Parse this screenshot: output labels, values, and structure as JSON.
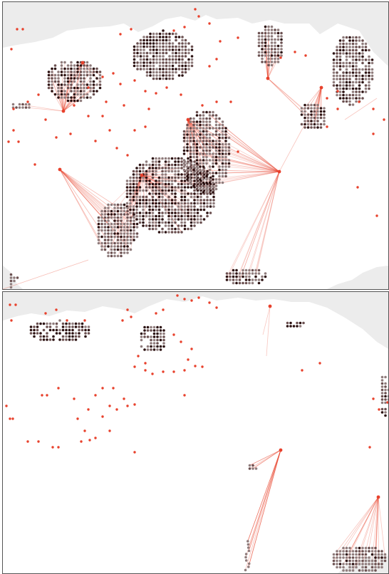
{
  "colors": {
    "background": "#ffffff",
    "land": "#ececec",
    "frame": "#555555",
    "link": "#e8412c",
    "hub": "#e8412c",
    "cell_dark": "#2a0f0f",
    "cell_mid": "#6b5050",
    "cell_light": "#8f7c7c"
  },
  "maps": [
    {
      "name": "top-panel",
      "hubs": [
        {
          "id": "hub-a",
          "links": 60
        },
        {
          "id": "hub-b",
          "links": 55
        },
        {
          "id": "hub-c",
          "links": 40
        }
      ]
    },
    {
      "name": "bottom-panel",
      "hubs": [
        {
          "id": "hub-d",
          "links": 12
        },
        {
          "id": "hub-e",
          "links": 14
        }
      ]
    }
  ]
}
